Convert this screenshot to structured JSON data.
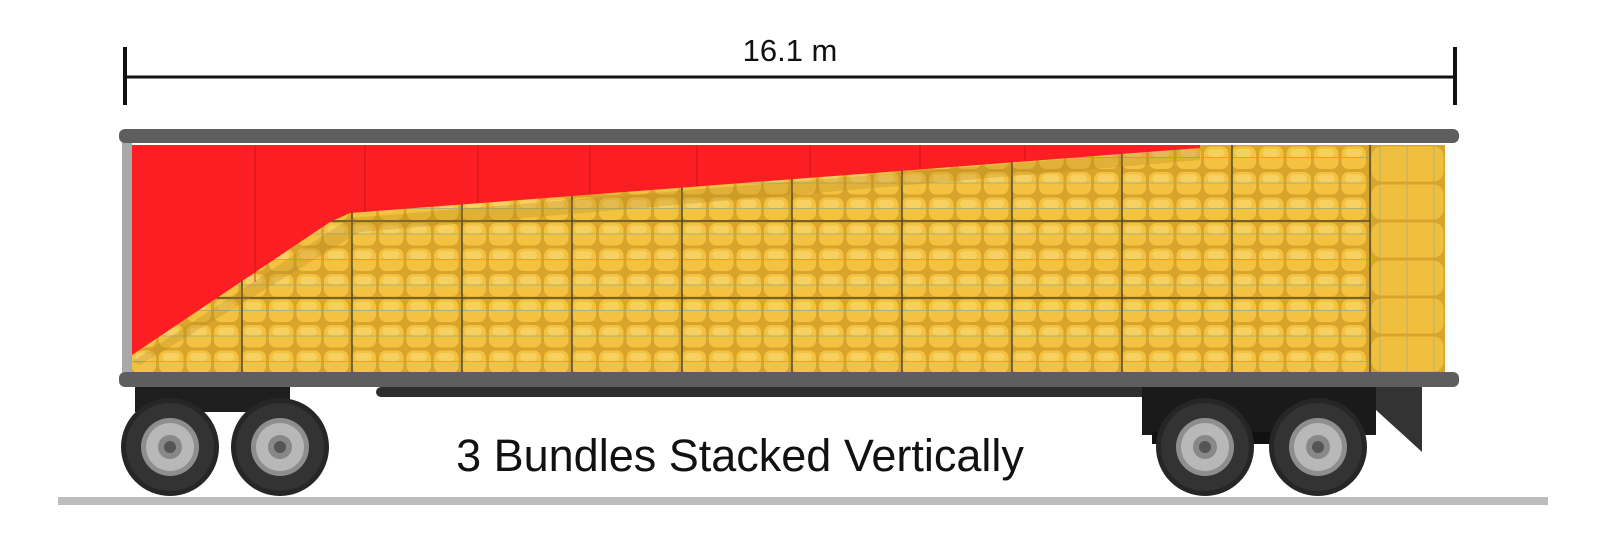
{
  "dimension": {
    "label": "16.1 m"
  },
  "caption": "3 Bundles Stacked Vertically"
}
